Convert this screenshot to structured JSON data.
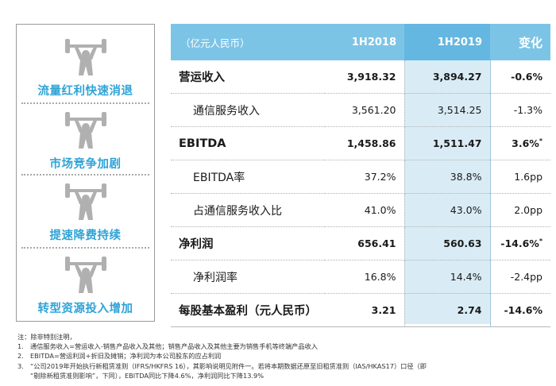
{
  "sidebar": {
    "items": [
      {
        "label": "流量红利快速消退",
        "icon": "weightlifter-icon"
      },
      {
        "label": "市场竞争加剧",
        "icon": "weightlifter-icon"
      },
      {
        "label": "提速降费持续",
        "icon": "weightlifter-icon"
      },
      {
        "label": "转型资源投入增加",
        "icon": "weightlifter-icon"
      }
    ]
  },
  "table": {
    "header": {
      "unit": "（亿元人民币）",
      "col1": "1H2018",
      "col2": "1H2019",
      "col3": "变化"
    },
    "rows": [
      {
        "name": "营运收入",
        "v1": "3,918.32",
        "v2": "3,894.27",
        "chg": "-0.6%",
        "mark": ""
      },
      {
        "name": "通信服务收入",
        "v1": "3,561.20",
        "v2": "3,514.25",
        "chg": "-1.3%",
        "mark": ""
      },
      {
        "name": "EBITDA",
        "v1": "1,458.86",
        "v2": "1,511.47",
        "chg": "3.6%",
        "mark": "*"
      },
      {
        "name": "EBITDA率",
        "v1": "37.2%",
        "v2": "38.8%",
        "chg": "1.6pp",
        "mark": ""
      },
      {
        "name": "占通信服务收入比",
        "v1": "41.0%",
        "v2": "43.0%",
        "chg": "2.0pp",
        "mark": ""
      },
      {
        "name": "净利润",
        "v1": "656.41",
        "v2": "560.63",
        "chg": "-14.6%",
        "mark": "*"
      },
      {
        "name": "净利润率",
        "v1": "16.8%",
        "v2": "14.4%",
        "chg": "-2.4pp",
        "mark": ""
      },
      {
        "name": "每股基本盈利（元人民币）",
        "v1": "3.21",
        "v2": "2.74",
        "chg": "-14.6%",
        "mark": ""
      }
    ]
  },
  "notes": {
    "title": "注：除非特别注明，",
    "items": [
      {
        "num": "1.",
        "text": "通信服务收入=营运收入-销售产品收入及其他；销售产品收入及其他主要为销售手机等终端产品收入"
      },
      {
        "num": "2.",
        "text": "EBITDA=营运利润+折旧及摊销；净利润为本公司股东的应占利润"
      },
      {
        "num": "3.",
        "text": "“公司2019年开始执行新租赁准则（IFRS/HKFRS 16），其影响说明见附件一。若将本期数据还原至旧租赁准则（IAS/HKAS17）口径（即"
      }
    ],
    "continuation": "“剔除新租赁准则影响”，下同），EBITDA同比下降4.6%，净利润同比下降13.9%"
  },
  "colors": {
    "header": "#7cc4e6",
    "highlight": "#d9ecf6",
    "sidebar_text": "#2fa3d6",
    "icon": "#b0b0b0"
  }
}
